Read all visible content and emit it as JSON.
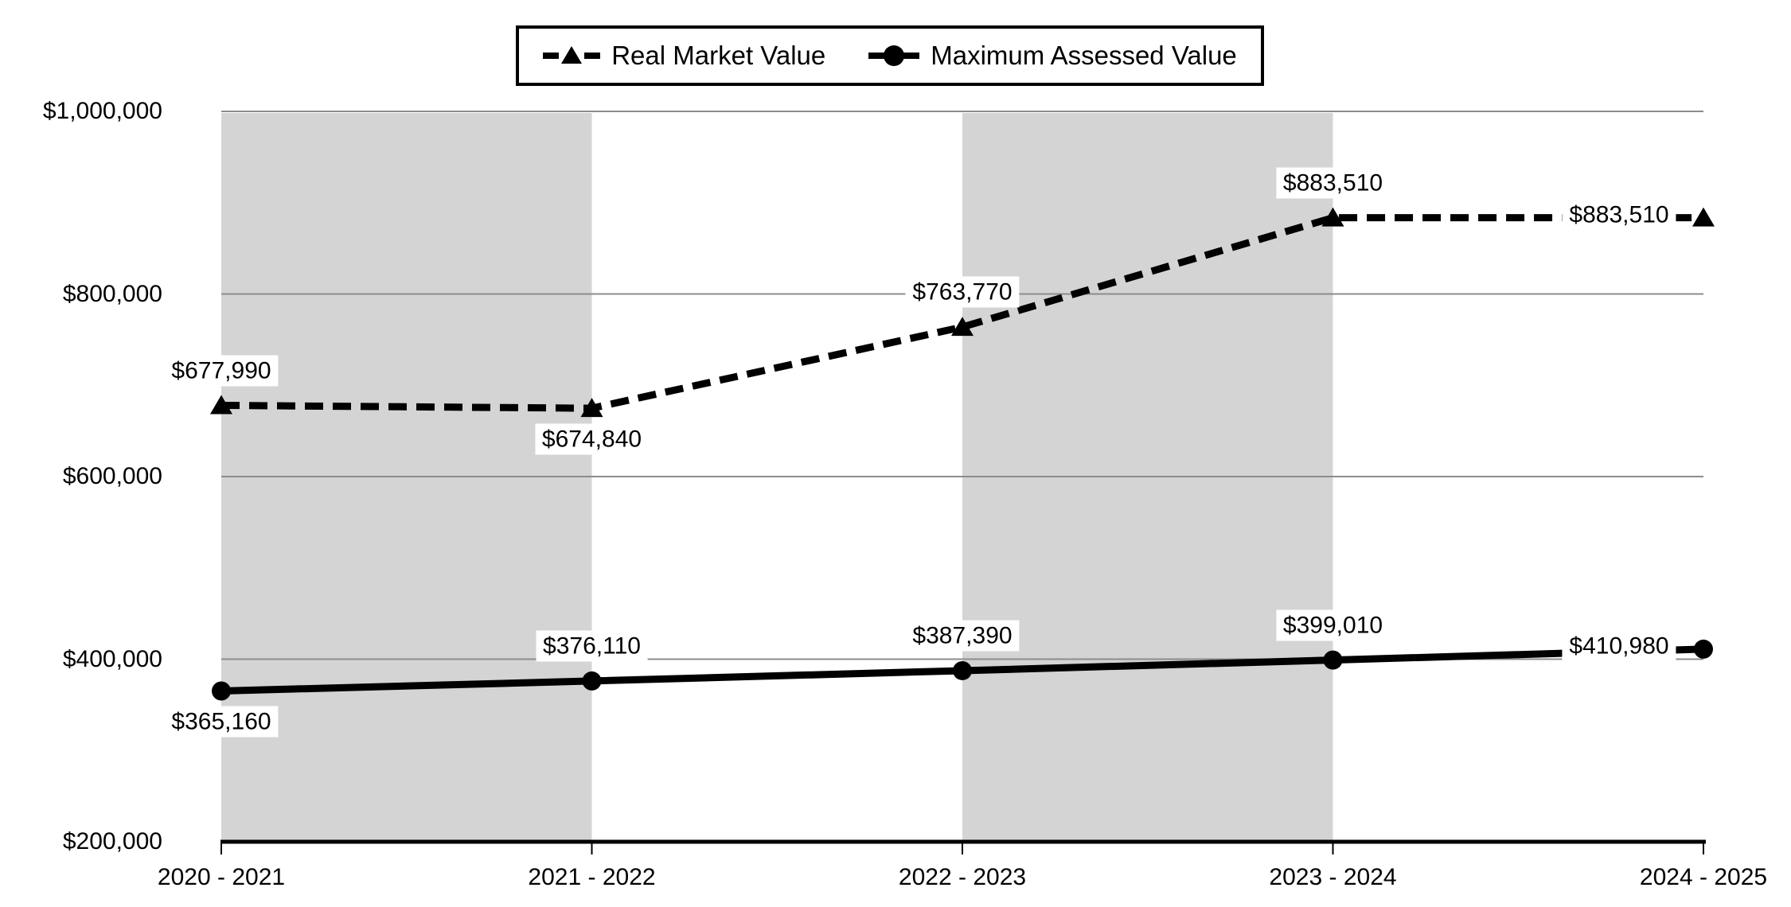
{
  "chart_data": {
    "type": "line",
    "categories": [
      "2020 - 2021",
      "2021 - 2022",
      "2022 - 2023",
      "2023 - 2024",
      "2024 - 2025"
    ],
    "series": [
      {
        "name": "Real Market Value",
        "line_style": "dashed",
        "marker": "triangle",
        "values": [
          677990,
          674840,
          763770,
          883510,
          883510
        ],
        "data_labels": [
          "$677,990",
          "$674,840",
          "$763,770",
          "$883,510",
          "$883,510"
        ],
        "label_placement": [
          "above",
          "below",
          "above",
          "above",
          "inline-left"
        ]
      },
      {
        "name": "Maximum Assessed Value",
        "line_style": "solid",
        "marker": "circle",
        "values": [
          365160,
          376110,
          387390,
          399010,
          410980
        ],
        "data_labels": [
          "$365,160",
          "$376,110",
          "$387,390",
          "$399,010",
          "$410,980"
        ],
        "label_placement": [
          "below",
          "above",
          "above",
          "above",
          "inline-left"
        ]
      }
    ],
    "ylim": [
      200000,
      1000000
    ],
    "ytick_step": 200000,
    "ytick_labels": [
      "$200,000",
      "$400,000",
      "$600,000",
      "$800,000",
      "$1,000,000"
    ],
    "grid": "horizontal-only",
    "legend_position": "top-center",
    "plot_bands_between_categories": [
      [
        0,
        1
      ],
      [
        2,
        3
      ]
    ],
    "colors": {
      "series": "#000000",
      "plot_band": "#d4d4d4",
      "gridline": "#8c8c8c",
      "axis": "#000000",
      "label_background": "#ffffff",
      "legend_border": "#000000",
      "background": "#ffffff"
    }
  }
}
